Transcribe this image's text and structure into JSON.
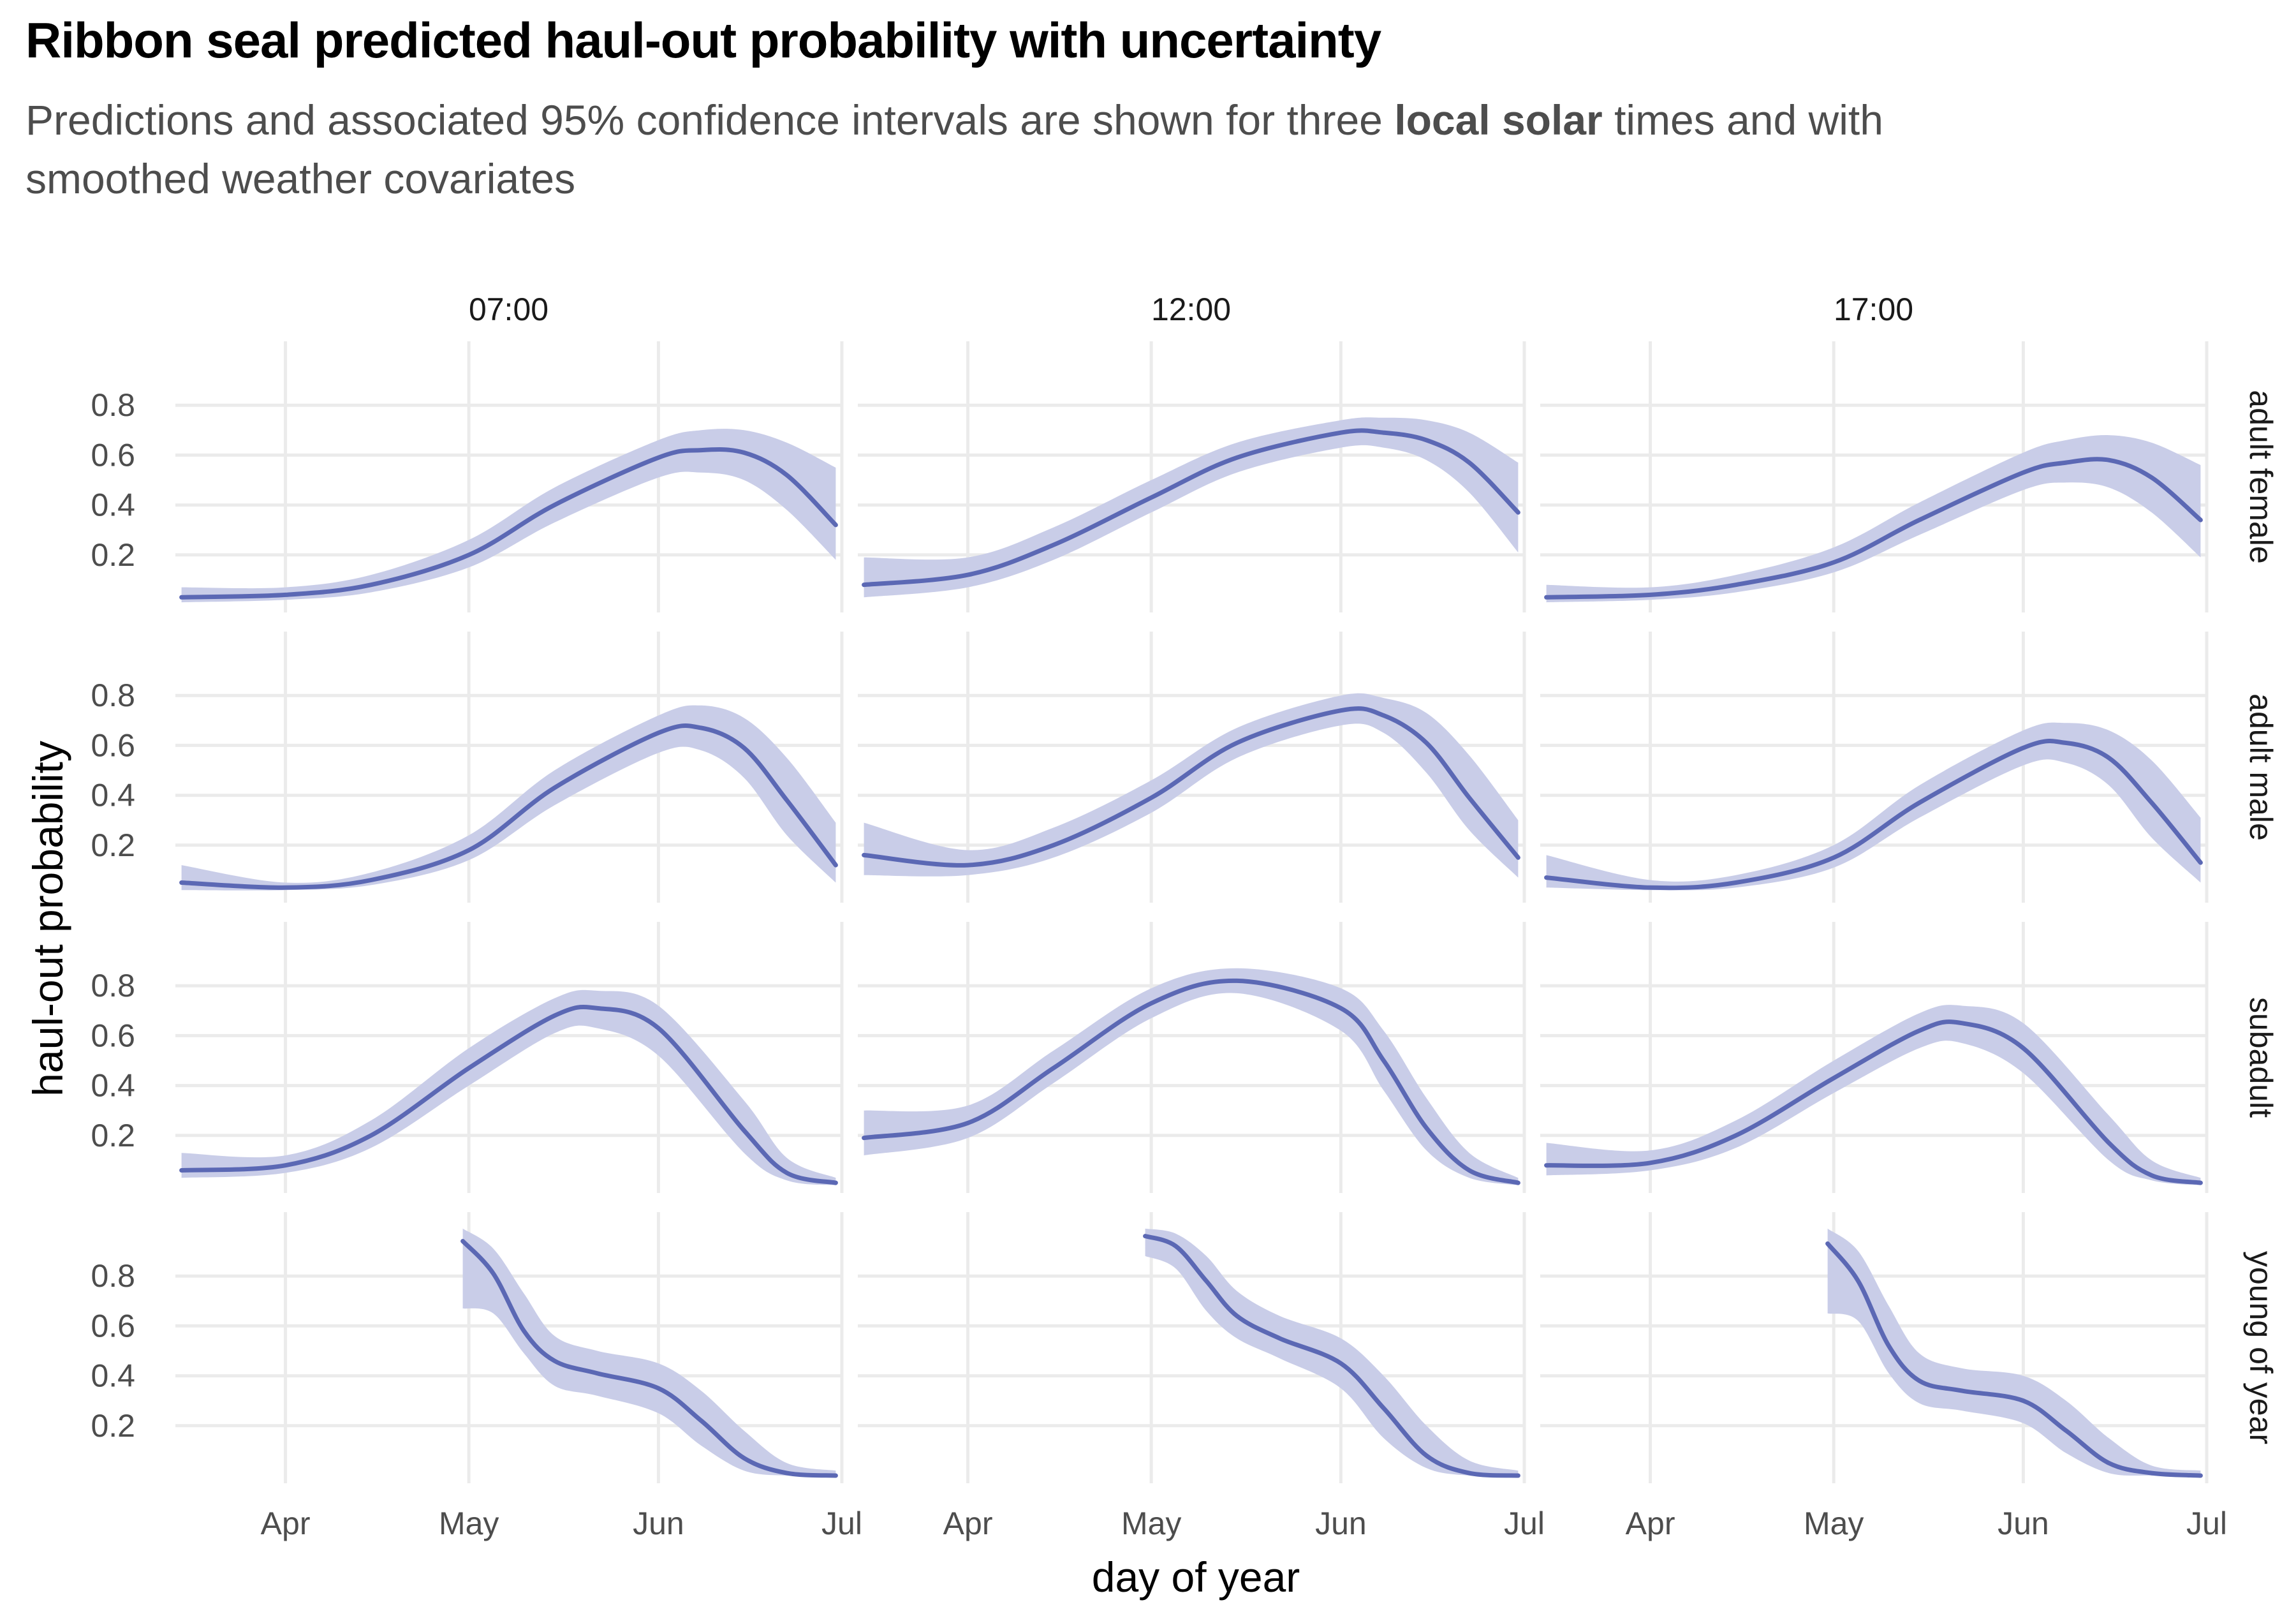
{
  "title": "Ribbon seal predicted haul-out probability with uncertainty",
  "subtitle": {
    "before": "Predictions and associated 95% confidence intervals are shown for three ",
    "bold": "local solar",
    "after": " times and with smoothed weather covariates"
  },
  "colors": {
    "line": "#5b68b4",
    "band": "#c9cde8",
    "grid": "#ebebeb"
  },
  "chart_data": {
    "type": "line",
    "xlabel": "day of year",
    "ylabel": "haul-out probability",
    "xlim": [
      "2023-03-14",
      "2023-07-01"
    ],
    "ylim": [
      0,
      1
    ],
    "x_ticks": [
      {
        "date": "2023-04-01",
        "label": "Apr"
      },
      {
        "date": "2023-05-01",
        "label": "May"
      },
      {
        "date": "2023-06-01",
        "label": "Jun"
      },
      {
        "date": "2023-07-01",
        "label": "Jul"
      }
    ],
    "y_ticks": [
      {
        "value": 0.2,
        "label": "0.2"
      },
      {
        "value": 0.4,
        "label": "0.4"
      },
      {
        "value": 0.6,
        "label": "0.6"
      },
      {
        "value": 0.8,
        "label": "0.8"
      }
    ],
    "columns": [
      "07:00",
      "12:00",
      "17:00"
    ],
    "rows": [
      "adult female",
      "adult male",
      "subadult",
      "young of year"
    ],
    "grid": true,
    "panels": [
      {
        "row": "adult female",
        "col": "07:00",
        "x": [
          "2023-03-15",
          "2023-04-01",
          "2023-04-15",
          "2023-05-01",
          "2023-05-15",
          "2023-06-01",
          "2023-06-08",
          "2023-06-15",
          "2023-06-22",
          "2023-06-30"
        ],
        "y": [
          0.03,
          0.04,
          0.08,
          0.2,
          0.4,
          0.59,
          0.62,
          0.61,
          0.52,
          0.32
        ],
        "lower": [
          0.01,
          0.02,
          0.05,
          0.15,
          0.33,
          0.51,
          0.53,
          0.5,
          0.38,
          0.18
        ],
        "upper": [
          0.07,
          0.07,
          0.12,
          0.26,
          0.47,
          0.66,
          0.7,
          0.7,
          0.65,
          0.55
        ]
      },
      {
        "row": "adult female",
        "col": "12:00",
        "x": [
          "2023-03-15",
          "2023-04-01",
          "2023-04-15",
          "2023-05-01",
          "2023-05-15",
          "2023-06-01",
          "2023-06-08",
          "2023-06-15",
          "2023-06-22",
          "2023-06-30"
        ],
        "y": [
          0.08,
          0.12,
          0.24,
          0.43,
          0.59,
          0.69,
          0.69,
          0.66,
          0.57,
          0.37
        ],
        "lower": [
          0.03,
          0.07,
          0.18,
          0.37,
          0.53,
          0.63,
          0.63,
          0.58,
          0.45,
          0.21
        ],
        "upper": [
          0.19,
          0.19,
          0.31,
          0.5,
          0.65,
          0.74,
          0.75,
          0.74,
          0.69,
          0.57
        ]
      },
      {
        "row": "adult female",
        "col": "17:00",
        "x": [
          "2023-03-15",
          "2023-04-01",
          "2023-04-15",
          "2023-05-01",
          "2023-05-15",
          "2023-06-01",
          "2023-06-08",
          "2023-06-15",
          "2023-06-22",
          "2023-06-30"
        ],
        "y": [
          0.03,
          0.04,
          0.08,
          0.17,
          0.34,
          0.53,
          0.57,
          0.58,
          0.51,
          0.34
        ],
        "lower": [
          0.01,
          0.02,
          0.05,
          0.13,
          0.28,
          0.46,
          0.49,
          0.47,
          0.37,
          0.19
        ],
        "upper": [
          0.08,
          0.07,
          0.12,
          0.23,
          0.41,
          0.61,
          0.66,
          0.68,
          0.65,
          0.56
        ]
      },
      {
        "row": "adult male",
        "col": "07:00",
        "x": [
          "2023-03-15",
          "2023-04-01",
          "2023-04-15",
          "2023-05-01",
          "2023-05-15",
          "2023-06-01",
          "2023-06-08",
          "2023-06-15",
          "2023-06-22",
          "2023-06-30"
        ],
        "y": [
          0.05,
          0.03,
          0.06,
          0.18,
          0.43,
          0.65,
          0.67,
          0.59,
          0.38,
          0.12
        ],
        "lower": [
          0.02,
          0.02,
          0.04,
          0.14,
          0.36,
          0.57,
          0.58,
          0.47,
          0.24,
          0.05
        ],
        "upper": [
          0.12,
          0.05,
          0.09,
          0.24,
          0.5,
          0.72,
          0.76,
          0.71,
          0.55,
          0.29
        ]
      },
      {
        "row": "adult male",
        "col": "12:00",
        "x": [
          "2023-03-15",
          "2023-04-01",
          "2023-04-15",
          "2023-05-01",
          "2023-05-15",
          "2023-06-01",
          "2023-06-08",
          "2023-06-15",
          "2023-06-22",
          "2023-06-30"
        ],
        "y": [
          0.16,
          0.12,
          0.2,
          0.39,
          0.61,
          0.74,
          0.72,
          0.61,
          0.39,
          0.15
        ],
        "lower": [
          0.08,
          0.08,
          0.15,
          0.33,
          0.55,
          0.68,
          0.65,
          0.49,
          0.26,
          0.07
        ],
        "upper": [
          0.29,
          0.18,
          0.27,
          0.46,
          0.67,
          0.8,
          0.79,
          0.73,
          0.56,
          0.3
        ]
      },
      {
        "row": "adult male",
        "col": "17:00",
        "x": [
          "2023-03-15",
          "2023-04-01",
          "2023-04-15",
          "2023-05-01",
          "2023-05-15",
          "2023-06-01",
          "2023-06-08",
          "2023-06-15",
          "2023-06-22",
          "2023-06-30"
        ],
        "y": [
          0.07,
          0.03,
          0.05,
          0.15,
          0.37,
          0.59,
          0.61,
          0.55,
          0.37,
          0.13
        ],
        "lower": [
          0.03,
          0.02,
          0.03,
          0.11,
          0.31,
          0.52,
          0.53,
          0.44,
          0.23,
          0.05
        ],
        "upper": [
          0.16,
          0.06,
          0.08,
          0.2,
          0.44,
          0.66,
          0.69,
          0.66,
          0.54,
          0.31
        ]
      },
      {
        "row": "subadult",
        "col": "07:00",
        "x": [
          "2023-03-15",
          "2023-04-01",
          "2023-04-15",
          "2023-05-01",
          "2023-05-15",
          "2023-05-22",
          "2023-06-01",
          "2023-06-15",
          "2023-06-22",
          "2023-06-30"
        ],
        "y": [
          0.06,
          0.08,
          0.2,
          0.47,
          0.68,
          0.71,
          0.63,
          0.22,
          0.05,
          0.01
        ],
        "lower": [
          0.03,
          0.05,
          0.15,
          0.4,
          0.61,
          0.63,
          0.52,
          0.13,
          0.02,
          0.0
        ],
        "upper": [
          0.13,
          0.12,
          0.26,
          0.55,
          0.75,
          0.78,
          0.72,
          0.34,
          0.11,
          0.03
        ]
      },
      {
        "row": "subadult",
        "col": "12:00",
        "x": [
          "2023-03-15",
          "2023-04-01",
          "2023-04-15",
          "2023-05-01",
          "2023-05-15",
          "2023-06-01",
          "2023-06-08",
          "2023-06-15",
          "2023-06-22",
          "2023-06-30"
        ],
        "y": [
          0.19,
          0.25,
          0.47,
          0.73,
          0.82,
          0.71,
          0.5,
          0.23,
          0.06,
          0.01
        ],
        "lower": [
          0.12,
          0.19,
          0.41,
          0.67,
          0.77,
          0.62,
          0.38,
          0.14,
          0.03,
          0.0
        ],
        "upper": [
          0.3,
          0.32,
          0.54,
          0.79,
          0.87,
          0.79,
          0.62,
          0.35,
          0.13,
          0.03
        ]
      },
      {
        "row": "subadult",
        "col": "17:00",
        "x": [
          "2023-03-15",
          "2023-04-01",
          "2023-04-15",
          "2023-05-01",
          "2023-05-15",
          "2023-05-22",
          "2023-06-01",
          "2023-06-15",
          "2023-06-22",
          "2023-06-30"
        ],
        "y": [
          0.08,
          0.09,
          0.2,
          0.43,
          0.62,
          0.65,
          0.55,
          0.17,
          0.04,
          0.01
        ],
        "lower": [
          0.04,
          0.06,
          0.15,
          0.37,
          0.55,
          0.57,
          0.45,
          0.1,
          0.02,
          0.0
        ],
        "upper": [
          0.17,
          0.14,
          0.26,
          0.5,
          0.69,
          0.72,
          0.65,
          0.28,
          0.1,
          0.03
        ]
      },
      {
        "row": "young of year",
        "col": "07:00",
        "x": [
          "2023-04-30",
          "2023-05-05",
          "2023-05-10",
          "2023-05-15",
          "2023-05-22",
          "2023-06-01",
          "2023-06-08",
          "2023-06-15",
          "2023-06-22",
          "2023-06-30"
        ],
        "y": [
          0.94,
          0.81,
          0.58,
          0.46,
          0.41,
          0.35,
          0.22,
          0.07,
          0.01,
          0.0
        ],
        "lower": [
          0.67,
          0.65,
          0.49,
          0.36,
          0.32,
          0.25,
          0.12,
          0.02,
          0.0,
          0.0
        ],
        "upper": [
          0.99,
          0.91,
          0.73,
          0.56,
          0.5,
          0.45,
          0.34,
          0.18,
          0.05,
          0.02
        ]
      },
      {
        "row": "young of year",
        "col": "12:00",
        "x": [
          "2023-04-30",
          "2023-05-05",
          "2023-05-10",
          "2023-05-15",
          "2023-05-22",
          "2023-06-01",
          "2023-06-08",
          "2023-06-15",
          "2023-06-22",
          "2023-06-30"
        ],
        "y": [
          0.96,
          0.92,
          0.78,
          0.64,
          0.55,
          0.45,
          0.27,
          0.08,
          0.01,
          0.0
        ],
        "lower": [
          0.88,
          0.83,
          0.66,
          0.55,
          0.47,
          0.35,
          0.15,
          0.03,
          0.0,
          0.0
        ],
        "upper": [
          0.99,
          0.97,
          0.88,
          0.74,
          0.64,
          0.55,
          0.4,
          0.2,
          0.06,
          0.02
        ]
      },
      {
        "row": "young of year",
        "col": "17:00",
        "x": [
          "2023-04-30",
          "2023-05-05",
          "2023-05-10",
          "2023-05-15",
          "2023-05-22",
          "2023-06-01",
          "2023-06-08",
          "2023-06-15",
          "2023-06-22",
          "2023-06-30"
        ],
        "y": [
          0.93,
          0.78,
          0.52,
          0.38,
          0.34,
          0.3,
          0.18,
          0.05,
          0.01,
          0.0
        ],
        "lower": [
          0.65,
          0.62,
          0.41,
          0.29,
          0.26,
          0.21,
          0.09,
          0.01,
          0.0,
          0.0
        ],
        "upper": [
          0.99,
          0.9,
          0.68,
          0.49,
          0.43,
          0.4,
          0.3,
          0.15,
          0.04,
          0.02
        ]
      }
    ]
  }
}
